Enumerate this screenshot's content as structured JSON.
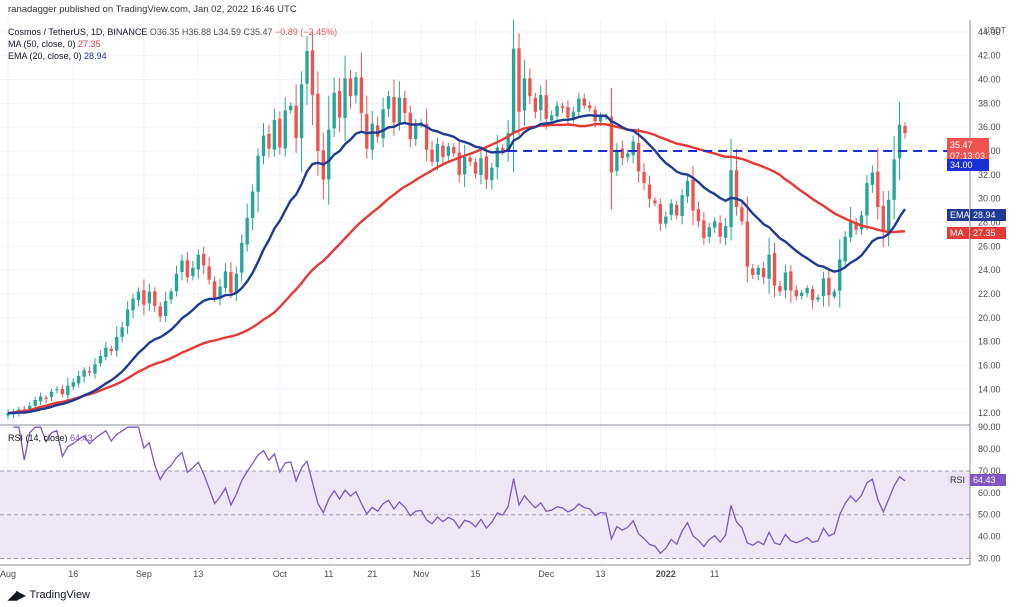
{
  "header": {
    "publisher": "ranadagger published on TradingView.com, Jan 02, 2022 16:46 UTC",
    "symbol": "Cosmos / TetherUS, 1D, BINANCE",
    "ohlc": "O36.35 H36.88 L34.59 C35.47",
    "change": "−0.89 (−2.45%)",
    "ma_label": "MA (50, close, 0)",
    "ma_value": "27.35",
    "ema_label": "EMA (20, close, 0)",
    "ema_value": "28.94",
    "rsi_label": "RSI (14, close)",
    "rsi_value": "64.43"
  },
  "currency": "USDT",
  "price_tags": {
    "last_price": "35.47",
    "countdown": "07:13:03",
    "level": "34.00",
    "ema_tag": "EMA",
    "ema_value": "28.94",
    "ma_tag": "MA",
    "ma_value": "27.35",
    "rsi_tag": "RSI",
    "rsi_value": "64.43"
  },
  "footer": {
    "logo_text": "TradingView"
  },
  "colors": {
    "up": "#26a69a",
    "down": "#ef5350",
    "ema": "#1f3a93",
    "ma": "#e53935",
    "rsi": "#7e57c2",
    "rsi_band": "#ede7f6",
    "level": "#1a2fd6"
  },
  "chart_data": [
    {
      "type": "candlestick",
      "title": "Cosmos / TetherUS, 1D, BINANCE",
      "y_axis": {
        "min": 11,
        "max": 45,
        "ticks": [
          12,
          14,
          16,
          18,
          20,
          22,
          24,
          26,
          28,
          30,
          32,
          34,
          36,
          38,
          40,
          42,
          44
        ]
      },
      "x_axis": {
        "tick_labels": [
          "Aug",
          "16",
          "Sep",
          "13",
          "Oct",
          "11",
          "21",
          "Nov",
          "15",
          "Dec",
          "13",
          "2022",
          "11"
        ],
        "tick_index": [
          0,
          12,
          25,
          35,
          50,
          59,
          67,
          76,
          86,
          99,
          109,
          121,
          130
        ]
      },
      "grid": true,
      "series": [
        {
          "name": "Cosmos / TetherUS",
          "kind": "ohlc",
          "close": [
            12.0,
            12.1,
            12.3,
            12.2,
            12.6,
            13.1,
            13.4,
            13.2,
            13.8,
            14.0,
            13.6,
            14.3,
            14.6,
            15.1,
            15.6,
            15.4,
            16.1,
            16.8,
            17.5,
            17.2,
            18.4,
            19.2,
            20.7,
            21.6,
            22.2,
            21.1,
            22.2,
            21.0,
            20.1,
            21.4,
            22.2,
            23.7,
            24.8,
            23.4,
            24.2,
            25.3,
            24.4,
            23.2,
            21.7,
            22.6,
            23.9,
            22.1,
            23.7,
            26.3,
            28.4,
            30.6,
            33.6,
            35.3,
            34.2,
            36.6,
            34.3,
            37.4,
            37.8,
            35.1,
            39.6,
            42.4,
            38.7,
            34.0,
            31.6,
            35.8,
            38.9,
            36.8,
            40.1,
            38.6,
            40.2,
            37.2,
            34.2,
            36.3,
            35.2,
            37.5,
            38.6,
            36.4,
            38.5,
            37.2,
            35.0,
            36.2,
            36.4,
            34.1,
            33.1,
            34.6,
            33.5,
            34.4,
            33.8,
            32.0,
            33.5,
            33.1,
            32.1,
            33.4,
            31.6,
            32.6,
            34.3,
            33.9,
            35.5,
            42.6,
            37.3,
            40.1,
            38.6,
            37.3,
            38.7,
            36.7,
            37.0,
            37.8,
            37.6,
            36.8,
            37.3,
            38.4,
            37.8,
            37.6,
            36.5,
            37.0,
            36.9,
            32.2,
            34.1,
            33.4,
            33.8,
            34.8,
            32.3,
            31.3,
            30.0,
            29.6,
            27.9,
            28.5,
            29.6,
            28.6,
            30.3,
            31.5,
            29.0,
            28.1,
            26.7,
            27.6,
            28.1,
            26.8,
            27.7,
            32.4,
            29.3,
            28.1,
            24.3,
            23.6,
            24.2,
            23.4,
            25.3,
            22.7,
            22.2,
            23.8,
            22.3,
            21.8,
            22.1,
            22.5,
            21.5,
            21.7,
            23.3,
            21.9,
            22.2,
            24.9,
            26.8,
            28.2,
            27.4,
            28.6,
            31.3,
            32.2,
            29.3,
            27.2,
            29.9,
            33.3,
            36.2,
            35.5
          ],
          "note": "daily closes, Aug 2021 to Jan 02 2022"
        }
      ],
      "levels": [
        {
          "name": "34.00",
          "y": 34.0
        }
      ]
    },
    {
      "type": "line",
      "title": "RSI (14, close)",
      "y_axis": {
        "min": 27,
        "max": 91,
        "ticks": [
          30,
          40,
          50,
          60,
          70,
          80,
          90
        ]
      },
      "band": [
        30,
        70
      ],
      "series": [
        {
          "name": "RSI (14, close)",
          "last": 64.43
        }
      ]
    }
  ]
}
